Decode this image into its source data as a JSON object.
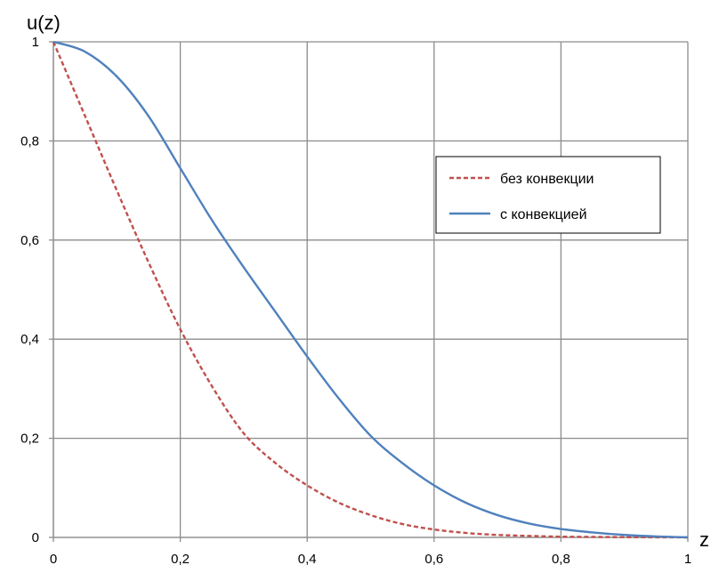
{
  "chart_data": {
    "type": "line",
    "xlabel": "z",
    "ylabel": "u(z)",
    "xlim": [
      0,
      1
    ],
    "ylim": [
      0,
      1
    ],
    "x_ticks": [
      "0",
      "0,2",
      "0,4",
      "0,6",
      "0,8",
      "1"
    ],
    "y_ticks": [
      "0",
      "0,2",
      "0,4",
      "0,6",
      "0,8",
      "1"
    ],
    "grid": true,
    "legend_position": "right",
    "series": [
      {
        "name": "без конвекции",
        "color": "#C0504D",
        "style": "dashed",
        "x": [
          0,
          0.05,
          0.1,
          0.15,
          0.2,
          0.25,
          0.3,
          0.35,
          0.4,
          0.45,
          0.5,
          0.55,
          0.6,
          0.65,
          0.7,
          0.75,
          0.8,
          0.85,
          0.9,
          0.95,
          1.0
        ],
        "y": [
          1.0,
          0.85,
          0.7,
          0.555,
          0.42,
          0.305,
          0.21,
          0.15,
          0.105,
          0.07,
          0.045,
          0.027,
          0.016,
          0.009,
          0.005,
          0.003,
          0.0015,
          0.001,
          0.0005,
          0.0002,
          0.0
        ]
      },
      {
        "name": "с конвекцией",
        "color": "#4F81BD",
        "style": "solid",
        "x": [
          0,
          0.05,
          0.1,
          0.15,
          0.2,
          0.25,
          0.3,
          0.35,
          0.4,
          0.45,
          0.5,
          0.55,
          0.6,
          0.65,
          0.7,
          0.75,
          0.8,
          0.85,
          0.9,
          0.95,
          1.0
        ],
        "y": [
          1.0,
          0.98,
          0.93,
          0.85,
          0.745,
          0.64,
          0.545,
          0.455,
          0.365,
          0.28,
          0.205,
          0.15,
          0.105,
          0.07,
          0.045,
          0.028,
          0.017,
          0.01,
          0.005,
          0.002,
          0.0
        ]
      }
    ]
  }
}
